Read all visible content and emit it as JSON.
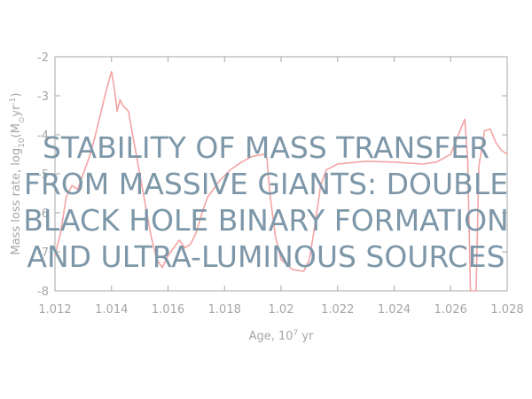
{
  "chart_data": {
    "type": "line",
    "xlabel_text": "Age, 10",
    "xlabel_sup": "7",
    "xlabel_unit": " yr",
    "ylabel_text": "Mass loss rate, log",
    "ylabel_sub": "10",
    "ylabel_unit_open": "(M",
    "ylabel_sun": "⊙",
    "ylabel_unit_mid": "yr",
    "ylabel_sup": "-1",
    "ylabel_close": ")",
    "xlim": [
      1.012,
      1.028
    ],
    "ylim": [
      -8,
      -2
    ],
    "x_ticks": [
      1.012,
      1.014,
      1.016,
      1.018,
      1.02,
      1.022,
      1.024,
      1.026,
      1.028
    ],
    "x_tick_labels": [
      "1.012",
      "1.014",
      "1.016",
      "1.018",
      "1.02",
      "1.022",
      "1.024",
      "1.026",
      "1.028"
    ],
    "y_ticks": [
      -8,
      -7,
      -6,
      -5,
      -4,
      -3,
      -2
    ],
    "y_tick_labels": [
      "-8",
      "-7",
      "-6",
      "-5",
      "-4",
      "-3",
      "-2"
    ],
    "grid": false,
    "series": [
      {
        "color": "#f4a3a3",
        "points": [
          [
            1.012,
            -7.1
          ],
          [
            1.0122,
            -6.5
          ],
          [
            1.0124,
            -5.6
          ],
          [
            1.0126,
            -5.3
          ],
          [
            1.0128,
            -5.4
          ],
          [
            1.013,
            -5.0
          ],
          [
            1.0132,
            -4.6
          ],
          [
            1.0134,
            -4.1
          ],
          [
            1.0136,
            -3.5
          ],
          [
            1.0138,
            -2.9
          ],
          [
            1.014,
            -2.38
          ],
          [
            1.0141,
            -2.8
          ],
          [
            1.0142,
            -3.4
          ],
          [
            1.0143,
            -3.1
          ],
          [
            1.0144,
            -3.25
          ],
          [
            1.0146,
            -3.4
          ],
          [
            1.0148,
            -4.2
          ],
          [
            1.015,
            -5.0
          ],
          [
            1.0152,
            -5.8
          ],
          [
            1.0154,
            -6.6
          ],
          [
            1.0156,
            -7.2
          ],
          [
            1.0158,
            -7.4
          ],
          [
            1.016,
            -7.1
          ],
          [
            1.0162,
            -6.9
          ],
          [
            1.0164,
            -6.7
          ],
          [
            1.0166,
            -6.9
          ],
          [
            1.0168,
            -6.8
          ],
          [
            1.017,
            -6.5
          ],
          [
            1.0172,
            -6.0
          ],
          [
            1.0174,
            -5.6
          ],
          [
            1.0178,
            -5.2
          ],
          [
            1.0182,
            -4.9
          ],
          [
            1.0186,
            -4.7
          ],
          [
            1.019,
            -4.55
          ],
          [
            1.0194,
            -4.5
          ],
          [
            1.0195,
            -4.6
          ],
          [
            1.0196,
            -5.5
          ],
          [
            1.0198,
            -6.6
          ],
          [
            1.02,
            -7.2
          ],
          [
            1.0204,
            -7.45
          ],
          [
            1.0208,
            -7.5
          ],
          [
            1.021,
            -7.2
          ],
          [
            1.0212,
            -6.3
          ],
          [
            1.0214,
            -5.3
          ],
          [
            1.0216,
            -4.9
          ],
          [
            1.022,
            -4.75
          ],
          [
            1.023,
            -4.68
          ],
          [
            1.024,
            -4.7
          ],
          [
            1.025,
            -4.75
          ],
          [
            1.0255,
            -4.7
          ],
          [
            1.026,
            -4.5
          ],
          [
            1.0263,
            -3.95
          ],
          [
            1.0265,
            -3.6
          ],
          [
            1.0266,
            -4.6
          ],
          [
            1.0267,
            -8.0
          ],
          [
            1.0269,
            -8.0
          ],
          [
            1.027,
            -4.8
          ],
          [
            1.0272,
            -3.9
          ],
          [
            1.0274,
            -3.85
          ],
          [
            1.0276,
            -4.2
          ],
          [
            1.0278,
            -4.4
          ],
          [
            1.028,
            -4.5
          ]
        ]
      }
    ],
    "overlay_title_lines": [
      "STABILITY OF MASS TRANSFER",
      "FROM MASSIVE GIANTS: DOUBLE",
      "BLACK HOLE BINARY FORMATION",
      "AND ULTRA-LUMINOUS SOURCES"
    ]
  }
}
